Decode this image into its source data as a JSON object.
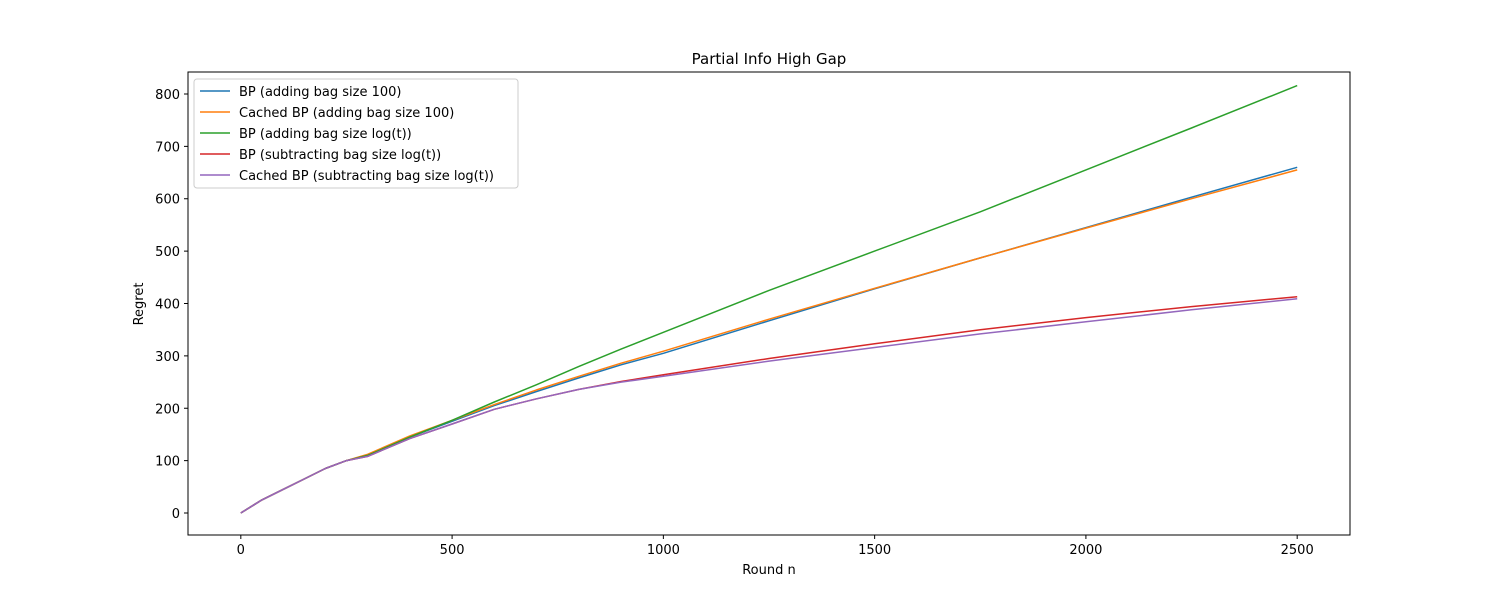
{
  "chart_data": {
    "type": "line",
    "title": "Partial Info High Gap",
    "xlabel": "Round n",
    "ylabel": "Regret",
    "xlim": [
      -125,
      2625
    ],
    "ylim": [
      -42,
      842
    ],
    "xticks": [
      0,
      500,
      1000,
      1500,
      2000,
      2500
    ],
    "yticks": [
      0,
      100,
      200,
      300,
      400,
      500,
      600,
      700,
      800
    ],
    "grid": false,
    "legend_position": "top-left",
    "x": [
      0,
      50,
      100,
      150,
      200,
      250,
      300,
      400,
      500,
      600,
      700,
      800,
      900,
      1000,
      1250,
      1500,
      1750,
      2000,
      2250,
      2500
    ],
    "series": [
      {
        "name": "BP (adding bag size 100)",
        "color": "#1f77b4",
        "values": [
          0,
          25,
          45,
          65,
          85,
          100,
          110,
          145,
          175,
          205,
          232,
          258,
          283,
          305,
          367,
          428,
          487,
          545,
          603,
          660
        ]
      },
      {
        "name": "Cached BP (adding bag size 100)",
        "color": "#ff7f0e",
        "values": [
          0,
          25,
          45,
          65,
          85,
          100,
          112,
          147,
          177,
          207,
          235,
          261,
          286,
          309,
          370,
          429,
          487,
          544,
          600,
          655
        ]
      },
      {
        "name": "BP (adding bag size log(t))",
        "color": "#2ca02c",
        "values": [
          0,
          25,
          45,
          65,
          85,
          100,
          110,
          145,
          177,
          212,
          245,
          280,
          313,
          345,
          425,
          500,
          575,
          655,
          735,
          816
        ]
      },
      {
        "name": "BP (subtracting bag size log(t))",
        "color": "#d62728",
        "values": [
          0,
          25,
          45,
          65,
          85,
          100,
          108,
          142,
          170,
          198,
          218,
          236,
          251,
          264,
          295,
          323,
          350,
          373,
          394,
          413
        ]
      },
      {
        "name": "Cached BP (subtracting bag size log(t))",
        "color": "#9467bd",
        "values": [
          0,
          25,
          45,
          65,
          85,
          100,
          108,
          142,
          170,
          198,
          218,
          236,
          250,
          261,
          290,
          316,
          342,
          365,
          388,
          409
        ]
      }
    ]
  }
}
